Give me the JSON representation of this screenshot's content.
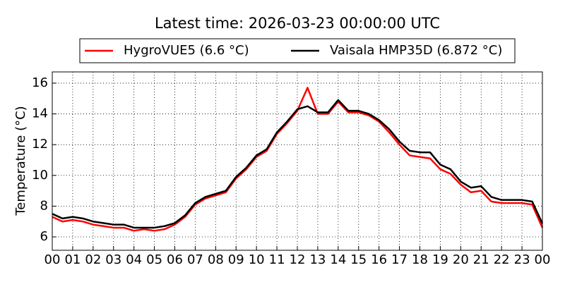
{
  "chart_data": {
    "type": "line",
    "title": "Latest time: 2026-03-23 00:00:00 UTC",
    "y_label": "Temperature (°C)",
    "x": [
      0,
      0.5,
      1,
      1.5,
      2,
      2.5,
      3,
      3.5,
      4,
      4.5,
      5,
      5.5,
      6,
      6.5,
      7,
      7.5,
      8,
      8.5,
      9,
      9.5,
      10,
      10.5,
      11,
      11.5,
      12,
      12.5,
      13,
      13.5,
      14,
      14.5,
      15,
      15.5,
      16,
      16.5,
      17,
      17.5,
      18,
      18.5,
      19,
      19.5,
      20,
      20.5,
      21,
      21.5,
      22,
      22.5,
      23,
      23.5,
      24
    ],
    "series": [
      {
        "name": "HygroVUE5 (6.6 °C)",
        "color": "#ff0000",
        "values": [
          7.3,
          7.0,
          7.1,
          7.0,
          6.8,
          6.7,
          6.6,
          6.6,
          6.4,
          6.5,
          6.4,
          6.5,
          6.8,
          7.3,
          8.1,
          8.5,
          8.7,
          8.9,
          9.8,
          10.4,
          11.2,
          11.6,
          12.7,
          13.4,
          14.2,
          15.7,
          14.0,
          14.0,
          14.8,
          14.1,
          14.1,
          13.9,
          13.5,
          12.8,
          12.0,
          11.3,
          11.2,
          11.1,
          10.4,
          10.1,
          9.4,
          8.9,
          9.0,
          8.3,
          8.2,
          8.2,
          8.2,
          8.1,
          6.6
        ]
      },
      {
        "name": "Vaisala HMP35D (6.872 °C)",
        "color": "#000000",
        "values": [
          7.5,
          7.2,
          7.3,
          7.2,
          7.0,
          6.9,
          6.8,
          6.8,
          6.6,
          6.6,
          6.6,
          6.7,
          6.9,
          7.4,
          8.2,
          8.6,
          8.8,
          9.0,
          9.9,
          10.5,
          11.3,
          11.7,
          12.8,
          13.5,
          14.3,
          14.5,
          14.1,
          14.1,
          14.9,
          14.2,
          14.2,
          14.0,
          13.6,
          13.0,
          12.2,
          11.6,
          11.5,
          11.5,
          10.7,
          10.4,
          9.6,
          9.2,
          9.3,
          8.6,
          8.4,
          8.4,
          8.4,
          8.3,
          6.872
        ]
      }
    ],
    "xlim": [
      0,
      24
    ],
    "xticks": [
      {
        "value": 0,
        "label": "00"
      },
      {
        "value": 1,
        "label": "01"
      },
      {
        "value": 2,
        "label": "02"
      },
      {
        "value": 3,
        "label": "03"
      },
      {
        "value": 4,
        "label": "04"
      },
      {
        "value": 5,
        "label": "05"
      },
      {
        "value": 6,
        "label": "06"
      },
      {
        "value": 7,
        "label": "07"
      },
      {
        "value": 8,
        "label": "08"
      },
      {
        "value": 9,
        "label": "09"
      },
      10,
      11,
      12,
      13,
      14,
      15,
      16,
      17,
      18,
      19,
      20,
      21,
      22,
      23,
      {
        "value": 24,
        "label": "00"
      }
    ],
    "ylim": [
      5.13,
      16.73
    ],
    "yticks": [
      6,
      8,
      10,
      12,
      14,
      16
    ],
    "grid": true,
    "legend": "top"
  }
}
